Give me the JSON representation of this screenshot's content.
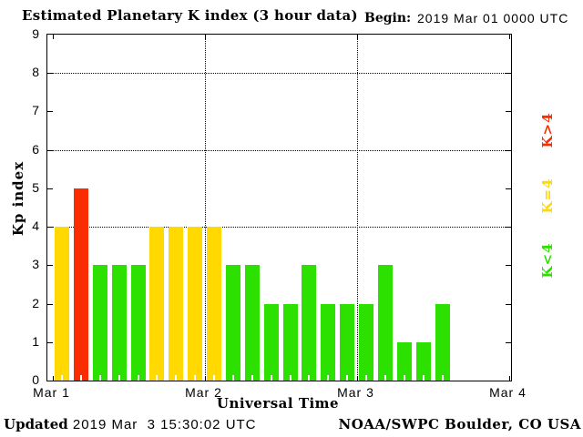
{
  "header": {
    "title": "Estimated Planetary K index (3 hour data)",
    "begin_label": "Begin:",
    "begin_value": "2019 Mar 01 0000 UTC"
  },
  "chart_data": {
    "type": "bar",
    "title": "Estimated Planetary K index (3 hour data)",
    "xlabel": "Universal Time",
    "ylabel": "Kp index",
    "ylim": [
      0,
      9
    ],
    "y_ticks": [
      0,
      1,
      2,
      3,
      4,
      5,
      6,
      7,
      8,
      9
    ],
    "y_gridlines": [
      4,
      6,
      8
    ],
    "x_range_hours": 72,
    "bar_interval_hours": 3,
    "x_day_ticks": [
      {
        "hour": 0,
        "label": "Mar 1"
      },
      {
        "hour": 24,
        "label": "Mar 2"
      },
      {
        "hour": 48,
        "label": "Mar 3"
      },
      {
        "hour": 72,
        "label": "Mar 4"
      }
    ],
    "values": [
      4,
      5,
      3,
      3,
      3,
      4,
      4,
      4,
      4,
      3,
      3,
      2,
      2,
      3,
      2,
      2,
      2,
      3,
      1,
      1,
      2
    ],
    "colors": {
      "low": "#2ce000",
      "mid": "#ffd900",
      "high": "#fa2d00"
    },
    "color_rule": "green K<4, yellow K=4, red K>4",
    "legend": [
      {
        "label": "K>4",
        "color": "#fa2d00"
      },
      {
        "label": "K=4",
        "color": "#ffd900"
      },
      {
        "label": "K<4",
        "color": "#2ce000"
      }
    ],
    "grid": "dotted horizontal at 4/6/8, dotted vertical at day boundaries",
    "legend_position": "right, rotated 90deg"
  },
  "footer": {
    "updated_label": "Updated",
    "updated_value": " 2019 Mar  3 15:30:02 UTC",
    "credit": "NOAA/SWPC Boulder, CO USA"
  }
}
